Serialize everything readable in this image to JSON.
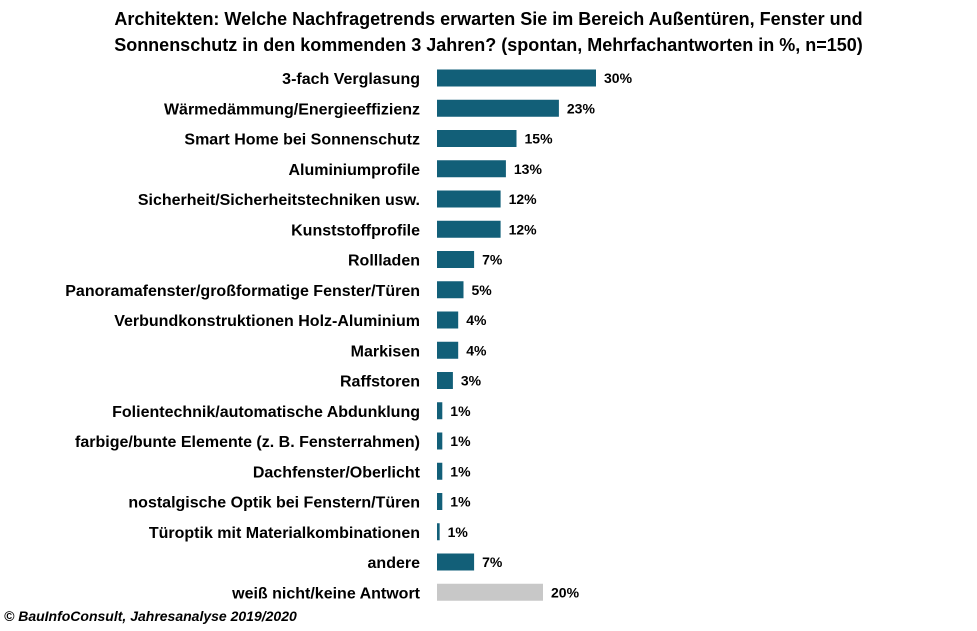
{
  "chart_data": {
    "type": "bar",
    "orientation": "horizontal",
    "title": "Architekten: Welche Nachfragetrends erwarten Sie im Bereich Außentüren, Fenster und Sonnenschutz in den kommenden 3 Jahren? (spontan, Mehrfachantworten in %, n=150)",
    "title_lines": [
      "Architekten: Welche Nachfragetrends erwarten Sie im Bereich Außentüren, Fenster und",
      "Sonnenschutz in den kommenden 3 Jahren? (spontan, Mehrfachantworten in %, n=150)"
    ],
    "categories": [
      "3-fach Verglasung",
      "Wärmedämmung/Energieeffizienz",
      "Smart Home bei Sonnenschutz",
      "Aluminiumprofile",
      "Sicherheit/Sicherheitstechniken usw.",
      "Kunststoffprofile",
      "Rollladen",
      "Panoramafenster/großformatige Fenster/Türen",
      "Verbundkonstruktionen Holz-Aluminium",
      "Markisen",
      "Raffstoren",
      "Folientechnik/automatische Abdunklung",
      "farbige/bunte Elemente (z. B. Fensterrahmen)",
      "Dachfenster/Oberlicht",
      "nostalgische Optik bei Fenstern/Türen",
      "Türoptik mit Materialkombinationen",
      "andere",
      "weiß nicht/keine Antwort"
    ],
    "values": [
      30,
      23,
      15,
      13,
      12,
      12,
      7,
      5,
      4,
      4,
      3,
      1,
      1,
      1,
      1,
      1,
      7,
      20
    ],
    "bar_widths": [
      30,
      23,
      15,
      13,
      12,
      12,
      7,
      5,
      4,
      4,
      3,
      1,
      1,
      1,
      1,
      0.5,
      7,
      20
    ],
    "value_labels": [
      "30%",
      "23%",
      "15%",
      "13%",
      "12%",
      "12%",
      "7%",
      "5%",
      "4%",
      "4%",
      "3%",
      "1%",
      "1%",
      "1%",
      "1%",
      "1%",
      "7%",
      "20%"
    ],
    "colors": {
      "bar": "#125f78",
      "bar_no_answer": "#c8c8c8"
    },
    "highlight_gray_index": 17,
    "grid": false,
    "legend": "none"
  },
  "footer": {
    "source": "© BauInfoConsult, Jahresanalyse 2019/2020"
  }
}
